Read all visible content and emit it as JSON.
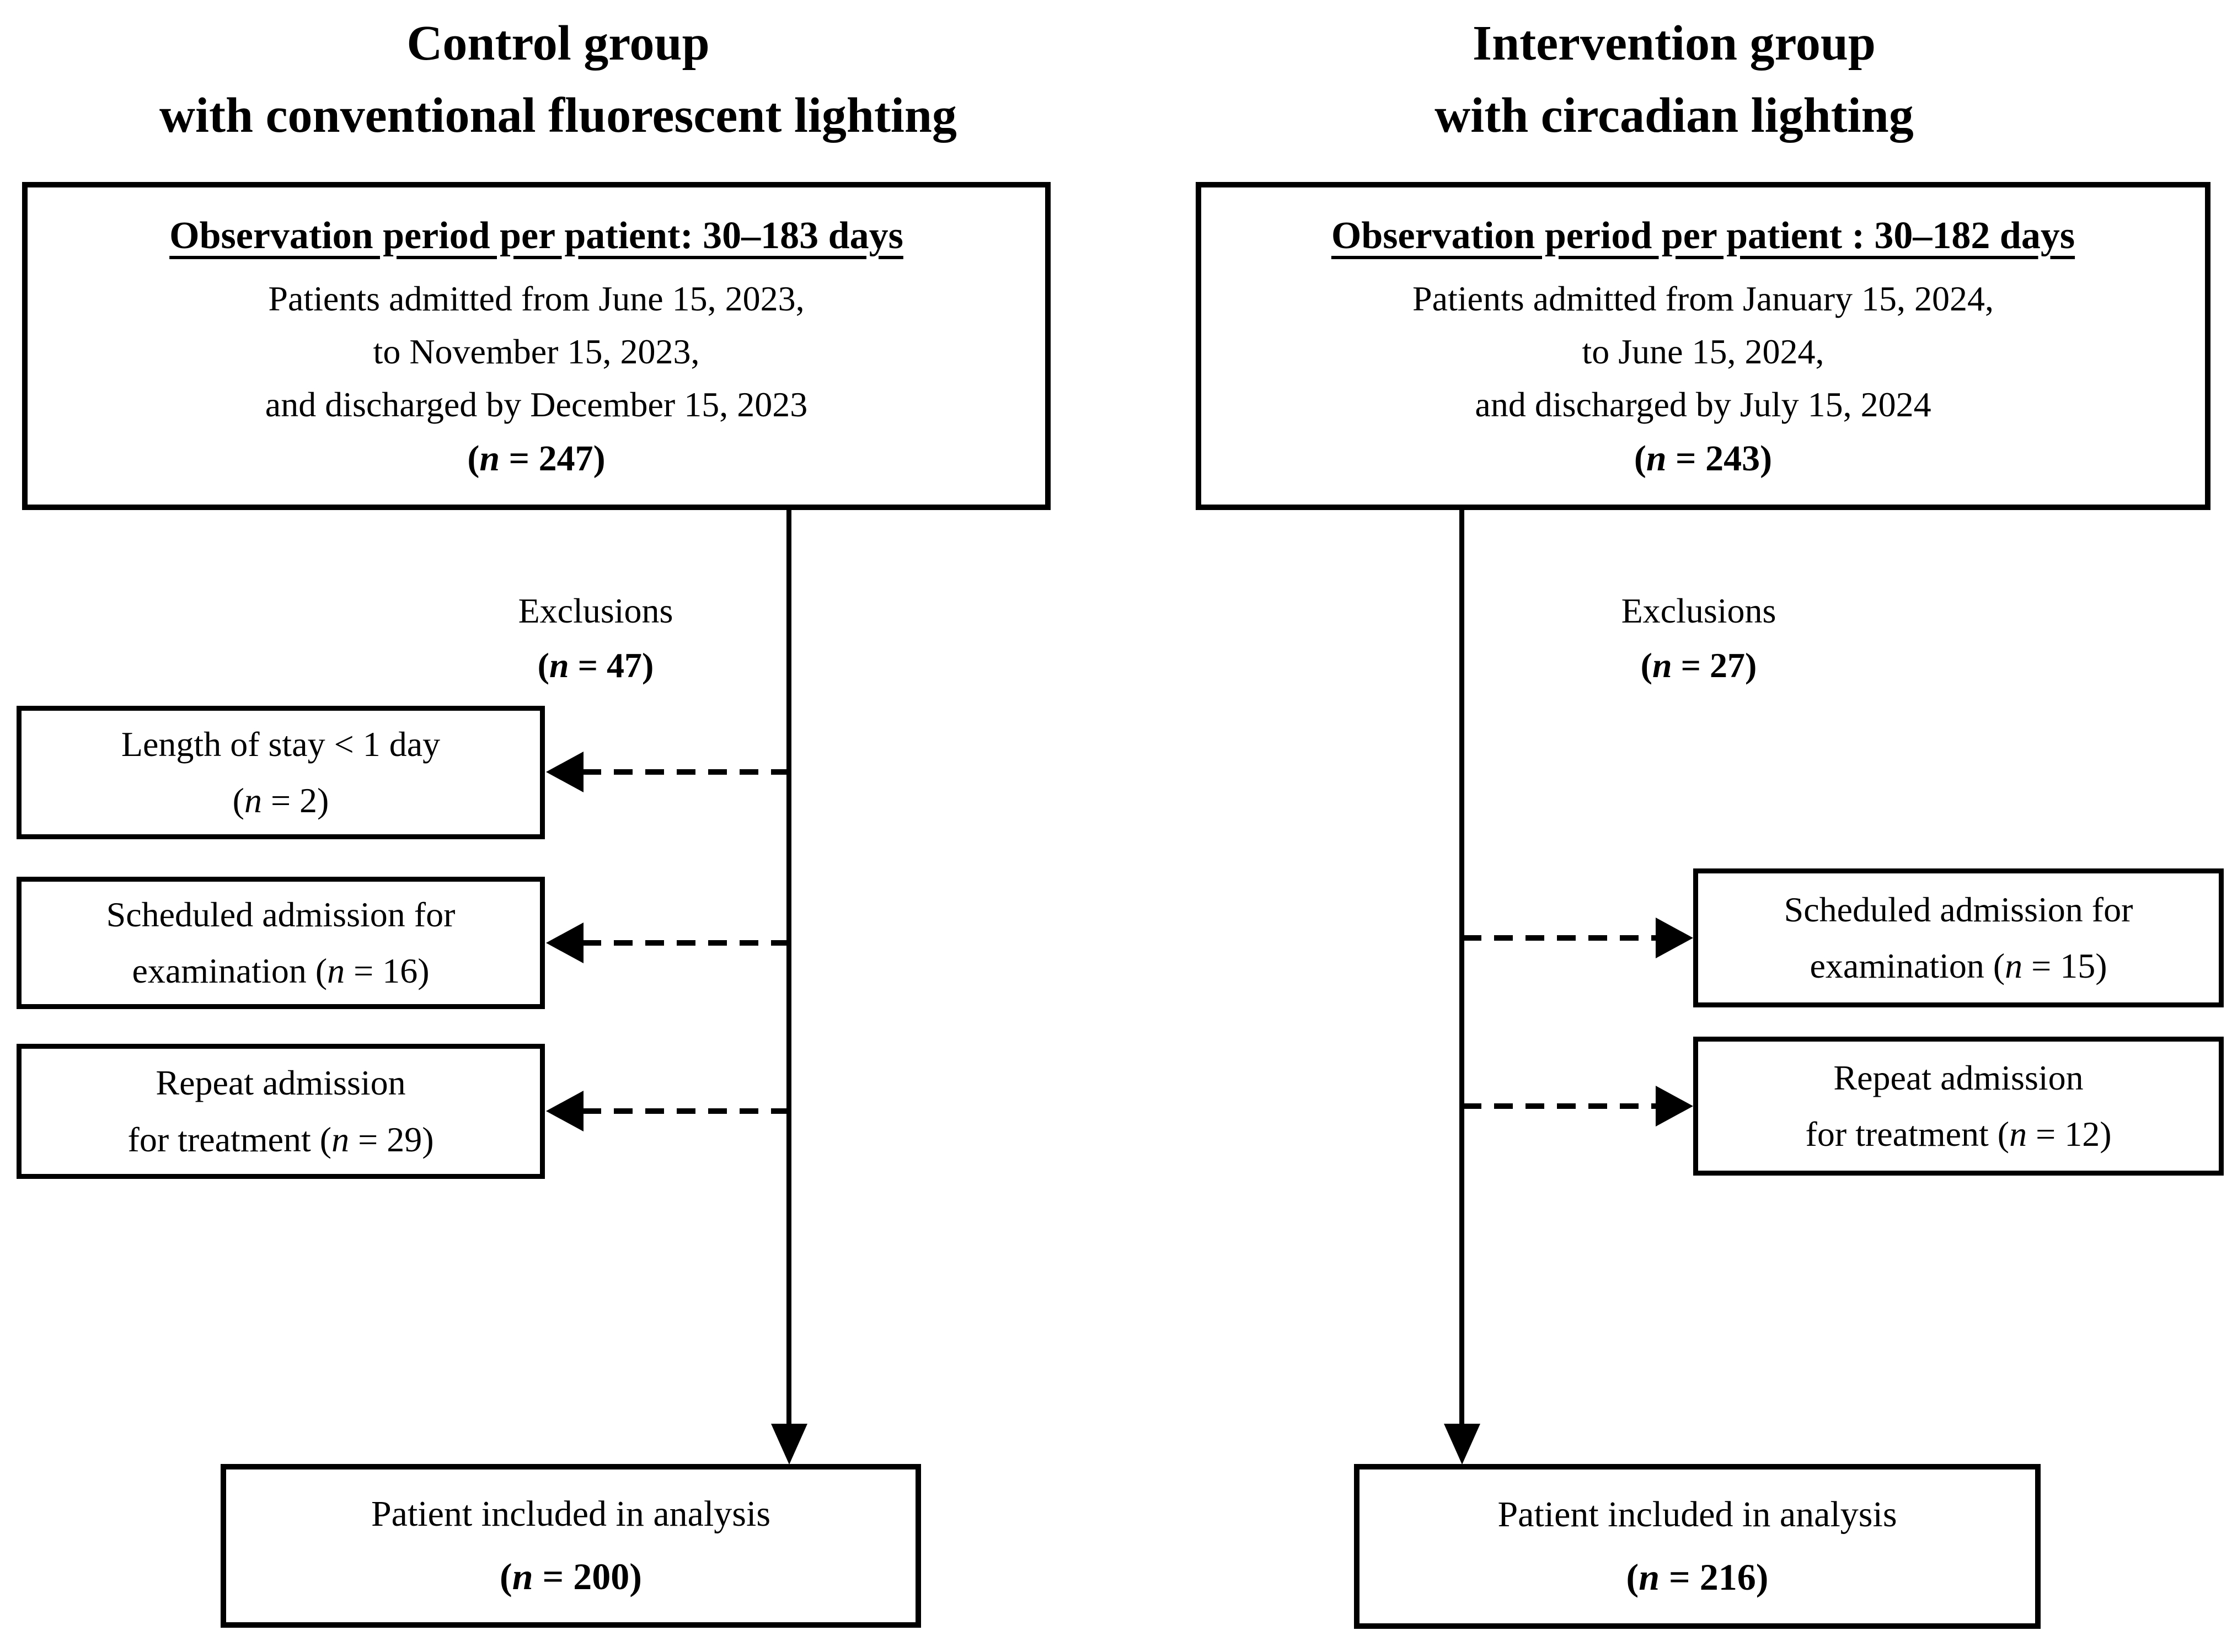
{
  "figure": {
    "control": {
      "title": [
        "Control group",
        "with conventional fluorescent lighting"
      ],
      "top_box": {
        "heading": "Observation period per patient: 30–183 days",
        "lines": [
          "Patients admitted from June 15, 2023,",
          "to November 15, 2023,",
          "and discharged by December 15, 2023"
        ],
        "n_open": "(",
        "n_sym": "n",
        "n_rest": " = 247)"
      },
      "exclusions_label": {
        "line1": "Exclusions",
        "n_open": "(",
        "n_sym": "n",
        "n_rest": " = 47)"
      },
      "excl_boxes": [
        {
          "line1": "Length of stay < 1 day",
          "pre": "(",
          "n_sym": "n",
          "post": " = 2)"
        },
        {
          "line1": "Scheduled admission for",
          "pre": "examination (",
          "n_sym": "n",
          "post": " = 16)"
        },
        {
          "line1": "Repeat admission",
          "pre": "for treatment (",
          "n_sym": "n",
          "post": " = 29)"
        }
      ],
      "bottom_box": {
        "line1": "Patient included in analysis",
        "pre": "(",
        "n_sym": "n",
        "post": " = 200)"
      }
    },
    "intervention": {
      "title": [
        "Intervention group",
        "with circadian lighting"
      ],
      "top_box": {
        "heading": "Observation period per patient : 30–182 days",
        "lines": [
          "Patients admitted from January 15, 2024,",
          "to June 15, 2024,",
          "and discharged by July 15, 2024"
        ],
        "n_open": "(",
        "n_sym": "n",
        "n_rest": " = 243)"
      },
      "exclusions_label": {
        "line1": "Exclusions",
        "n_open": "(",
        "n_sym": "n",
        "n_rest": " = 27)"
      },
      "excl_boxes": [
        {
          "line1": "Scheduled admission for",
          "pre": "examination (",
          "n_sym": "n",
          "post": " = 15)"
        },
        {
          "line1": "Repeat admission",
          "pre": "for treatment (",
          "n_sym": "n",
          "post": " = 12)"
        }
      ],
      "bottom_box": {
        "line1": "Patient included in analysis",
        "pre": "(",
        "n_sym": "n",
        "post": " = 216)"
      }
    },
    "colors": {
      "line": "#000000",
      "background": "#ffffff"
    }
  }
}
